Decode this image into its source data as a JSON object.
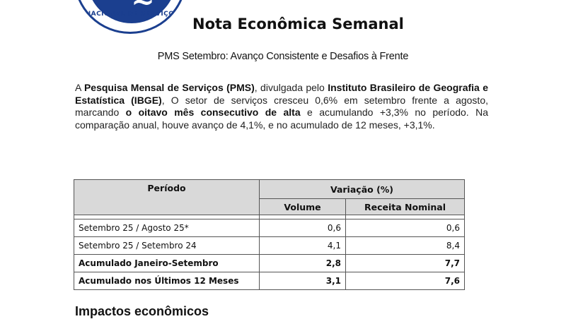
{
  "logo": {
    "ring_text": "NACIONAL DE SERVIÇOS"
  },
  "title": "Nota Econômica Semanal",
  "subtitle": "PMS Setembro: Avanço Consistente e Desafios à Frente",
  "paragraph": {
    "p1": "A ",
    "b1": "Pesquisa Mensal de Serviços (PMS)",
    "p2": ", divulgada pelo ",
    "b2": "Instituto Brasileiro de Geografia e Estatística (IBGE)",
    "p3": ", O setor de serviços cresceu 0,6% em setembro frente a agosto, marcando ",
    "b3": "o oitavo mês consecutivo de alta",
    "p4": " e acumulando +3,3% no período. Na comparação anual, houve avanço de 4,1%, e no acumulado de 12 meses, +3,1%."
  },
  "table": {
    "col_periodo": "Período",
    "col_variacao": "Variação (%)",
    "col_volume": "Volume",
    "col_receita": "Receita Nominal",
    "rows": [
      {
        "label": "Setembro 25 / Agosto 25*",
        "volume": "0,6",
        "receita": "0,6"
      },
      {
        "label": "Setembro 25 / Setembro 24",
        "volume": "4,1",
        "receita": "8,4"
      },
      {
        "label": "Acumulado Janeiro-Setembro",
        "volume": "2,8",
        "receita": "7,7"
      },
      {
        "label": "Acumulado nos Últimos 12 Meses",
        "volume": "3,1",
        "receita": "7,6"
      }
    ]
  },
  "section_heading": "Impactos econômicos"
}
